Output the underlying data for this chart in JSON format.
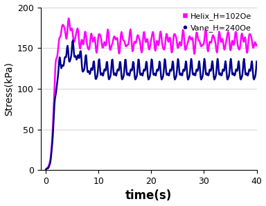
{
  "title": "",
  "xlabel": "time(s)",
  "ylabel": "Stress(kPa)",
  "xlim": [
    -1,
    40
  ],
  "ylim": [
    0,
    200
  ],
  "xticks": [
    0,
    10,
    20,
    30,
    40
  ],
  "yticks": [
    0,
    50,
    100,
    150,
    200
  ],
  "helix_color": "#FF00FF",
  "vane_color": "#00008B",
  "helix_label": "Helix_H=102Oe",
  "vane_label": "Vane_H=240Oe",
  "xlabel_fontsize": 12,
  "ylabel_fontsize": 10,
  "tick_fontsize": 9,
  "helix_peak": 175,
  "helix_settle": 158,
  "helix_noise_amp": 8,
  "helix_noise_freq": 0.7,
  "vane_peak": 145,
  "vane_settle": 122,
  "vane_noise_amp": 8,
  "vane_noise_freq": 0.8,
  "n_points": 400,
  "linewidth": 1.8
}
